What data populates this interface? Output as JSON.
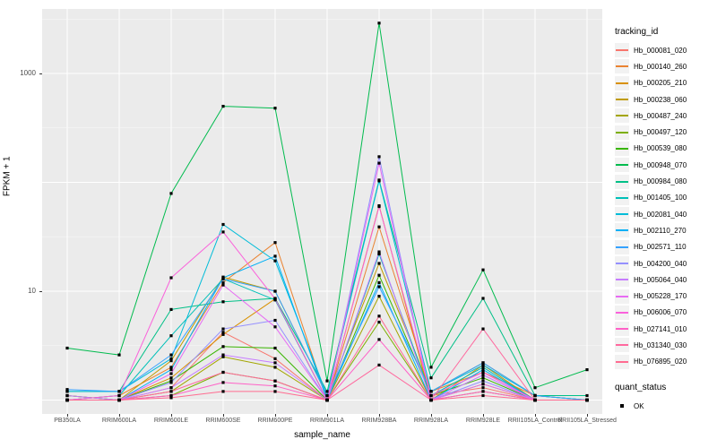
{
  "chart_data": {
    "type": "line",
    "title": "",
    "xlabel": "sample_name",
    "ylabel": "FPKM + 1",
    "y_scale": "log10",
    "ylim": [
      0.9,
      3900
    ],
    "y_ticks": [
      {
        "value": 1000,
        "label": "1000"
      },
      {
        "value": 10,
        "label": "10"
      }
    ],
    "grid": {
      "panel_bg": "#EBEBEB",
      "major_color": "#FFFFFF",
      "minor_color": "#F7F7F7",
      "major_breaks": [
        1,
        10,
        100,
        1000
      ],
      "minor_breaks": [
        3.162,
        31.62,
        316.2,
        3162
      ]
    },
    "point_marker": {
      "shape": "square",
      "color": "#000000",
      "size": 3.2
    },
    "categories": [
      "PB350LA",
      "RRIM600LA",
      "RRIM600LE",
      "RRIM600SE",
      "RRIM600PE",
      "RRIM901LA",
      "RRIM928BA",
      "RRIM928LA",
      "RRIM928LE",
      "RRII105LA_Control",
      "RRII105LA_Stressed"
    ],
    "legend": {
      "title": "tracking_id",
      "position": "right"
    },
    "quant_legend": {
      "title": "quant_status",
      "items": [
        {
          "label": "OK",
          "shape": "square",
          "color": "#000000"
        }
      ]
    },
    "series": [
      {
        "name": "Hb_000081_020",
        "color": "#F8766D",
        "values": [
          1.0,
          1.0,
          1.3,
          4.2,
          2.4,
          1.0,
          22,
          1.1,
          1.3,
          1.0,
          1.0
        ]
      },
      {
        "name": "Hb_000140_260",
        "color": "#EA8331",
        "values": [
          1.0,
          1.1,
          2.0,
          12,
          28,
          1.0,
          39,
          1.2,
          1.8,
          1.1,
          1.0
        ]
      },
      {
        "name": "Hb_000205_210",
        "color": "#D89000",
        "values": [
          1.0,
          1.0,
          1.6,
          4.0,
          8.5,
          1.0,
          61,
          1.0,
          2.1,
          1.0,
          1.0
        ]
      },
      {
        "name": "Hb_000238_060",
        "color": "#C09B00",
        "values": [
          1.1,
          1.0,
          2.3,
          13.5,
          10,
          1.1,
          18,
          1.2,
          2.2,
          1.1,
          1.0
        ]
      },
      {
        "name": "Hb_000487_240",
        "color": "#A3A500",
        "values": [
          1.0,
          1.0,
          1.2,
          2.5,
          2.0,
          1.0,
          9.0,
          1.0,
          1.4,
          1.0,
          1.0
        ]
      },
      {
        "name": "Hb_000497_120",
        "color": "#7CAE00",
        "values": [
          1.0,
          1.0,
          1.1,
          1.8,
          1.5,
          1.0,
          5.2,
          1.0,
          1.2,
          1.0,
          1.0
        ]
      },
      {
        "name": "Hb_000539_080",
        "color": "#39B600",
        "values": [
          1.1,
          1.0,
          1.5,
          3.1,
          3.0,
          1.0,
          14,
          1.1,
          1.6,
          1.0,
          1.0
        ]
      },
      {
        "name": "Hb_000948_070",
        "color": "#00BB4E",
        "values": [
          3.0,
          2.6,
          79,
          500,
          480,
          1.5,
          2900,
          2.0,
          15.7,
          1.3,
          1.9
        ]
      },
      {
        "name": "Hb_000984_080",
        "color": "#00C087",
        "values": [
          1.2,
          1.2,
          6.8,
          8.0,
          8.6,
          1.2,
          105,
          1.6,
          8.6,
          1.1,
          1.1
        ]
      },
      {
        "name": "Hb_001405_100",
        "color": "#00C0B8",
        "values": [
          1.0,
          1.1,
          3.9,
          13,
          8.3,
          1.0,
          22,
          1.1,
          2.0,
          1.0,
          1.0
        ]
      },
      {
        "name": "Hb_002081_040",
        "color": "#00BCD8",
        "values": [
          1.2,
          1.2,
          2.4,
          41,
          19,
          1.1,
          103,
          1.2,
          2.1,
          1.1,
          1.0
        ]
      },
      {
        "name": "Hb_002110_270",
        "color": "#00B0F6",
        "values": [
          1.0,
          1.0,
          1.9,
          13.3,
          21,
          1.0,
          12,
          1.0,
          1.9,
          1.0,
          1.0
        ]
      },
      {
        "name": "Hb_002571_110",
        "color": "#35A2FF",
        "values": [
          1.25,
          1.2,
          2.6,
          13,
          10,
          1.1,
          11,
          1.2,
          2.2,
          1.1,
          1.0
        ]
      },
      {
        "name": "Hb_004200_040",
        "color": "#9590FF",
        "values": [
          1.0,
          1.0,
          1.45,
          4.5,
          5.4,
          1.0,
          172,
          1.0,
          1.5,
          1.0,
          1.0
        ]
      },
      {
        "name": "Hb_005064_040",
        "color": "#C77CFF",
        "values": [
          1.1,
          1.0,
          1.3,
          2.6,
          2.2,
          1.0,
          23,
          1.0,
          1.7,
          1.0,
          1.0
        ]
      },
      {
        "name": "Hb_005228_170",
        "color": "#E76BF3",
        "values": [
          1.0,
          1.0,
          1.75,
          11.4,
          4.7,
          1.0,
          150,
          1.0,
          1.4,
          1.0,
          1.0
        ]
      },
      {
        "name": "Hb_006006_070",
        "color": "#FA62DB",
        "values": [
          1.0,
          1.1,
          13.3,
          35,
          8.5,
          1.0,
          60,
          1.1,
          1.8,
          1.0,
          1.0
        ]
      },
      {
        "name": "Hb_027141_010",
        "color": "#FF61C7",
        "values": [
          1.0,
          1.0,
          1.1,
          1.45,
          1.35,
          1.0,
          3.6,
          1.0,
          1.2,
          1.0,
          1.0
        ]
      },
      {
        "name": "Hb_031340_030",
        "color": "#FF689E",
        "values": [
          1.0,
          1.0,
          1.2,
          1.8,
          1.5,
          1.0,
          2.1,
          1.0,
          4.5,
          1.0,
          1.0
        ]
      },
      {
        "name": "Hb_076895_020",
        "color": "#FF6C91",
        "values": [
          1.0,
          1.0,
          1.05,
          1.2,
          1.2,
          1.0,
          5.9,
          1.0,
          1.1,
          1.0,
          1.0
        ]
      }
    ]
  }
}
